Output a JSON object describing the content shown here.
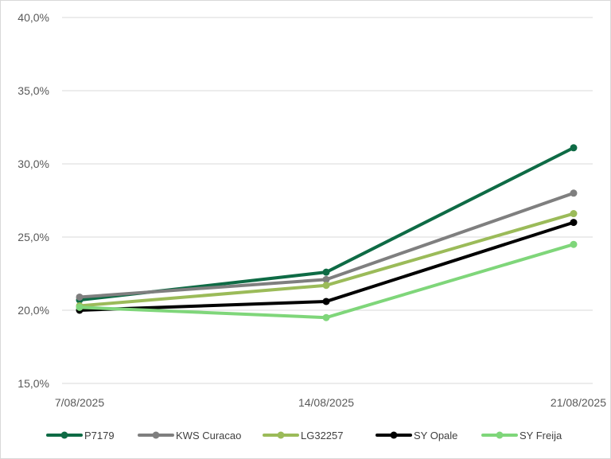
{
  "chart_data": {
    "type": "line",
    "title": "",
    "xlabel": "",
    "ylabel": "",
    "categories": [
      "7/08/2025",
      "14/08/2025",
      "21/08/2025"
    ],
    "ylim": [
      0.15,
      0.4
    ],
    "yticks": [
      {
        "value": 0.4,
        "label": "40,0%"
      },
      {
        "value": 0.35,
        "label": "35,0%"
      },
      {
        "value": 0.3,
        "label": "30,0%"
      },
      {
        "value": 0.25,
        "label": "25,0%"
      },
      {
        "value": 0.2,
        "label": "20,0%"
      },
      {
        "value": 0.15,
        "label": "15,0%"
      }
    ],
    "grid": true,
    "legend_position": "bottom",
    "series": [
      {
        "name": "P7179",
        "color": "#0e6b45",
        "values": [
          0.207,
          0.226,
          0.311
        ]
      },
      {
        "name": "KWS Curacao",
        "color": "#7f7f7f",
        "values": [
          0.209,
          0.221,
          0.28
        ]
      },
      {
        "name": "LG32257",
        "color": "#9bbb59",
        "values": [
          0.203,
          0.217,
          0.266
        ]
      },
      {
        "name": "SY Opale",
        "color": "#000000",
        "values": [
          0.2,
          0.206,
          0.26
        ]
      },
      {
        "name": "SY Freija",
        "color": "#7fd67a",
        "values": [
          0.202,
          0.195,
          0.245
        ]
      }
    ]
  }
}
